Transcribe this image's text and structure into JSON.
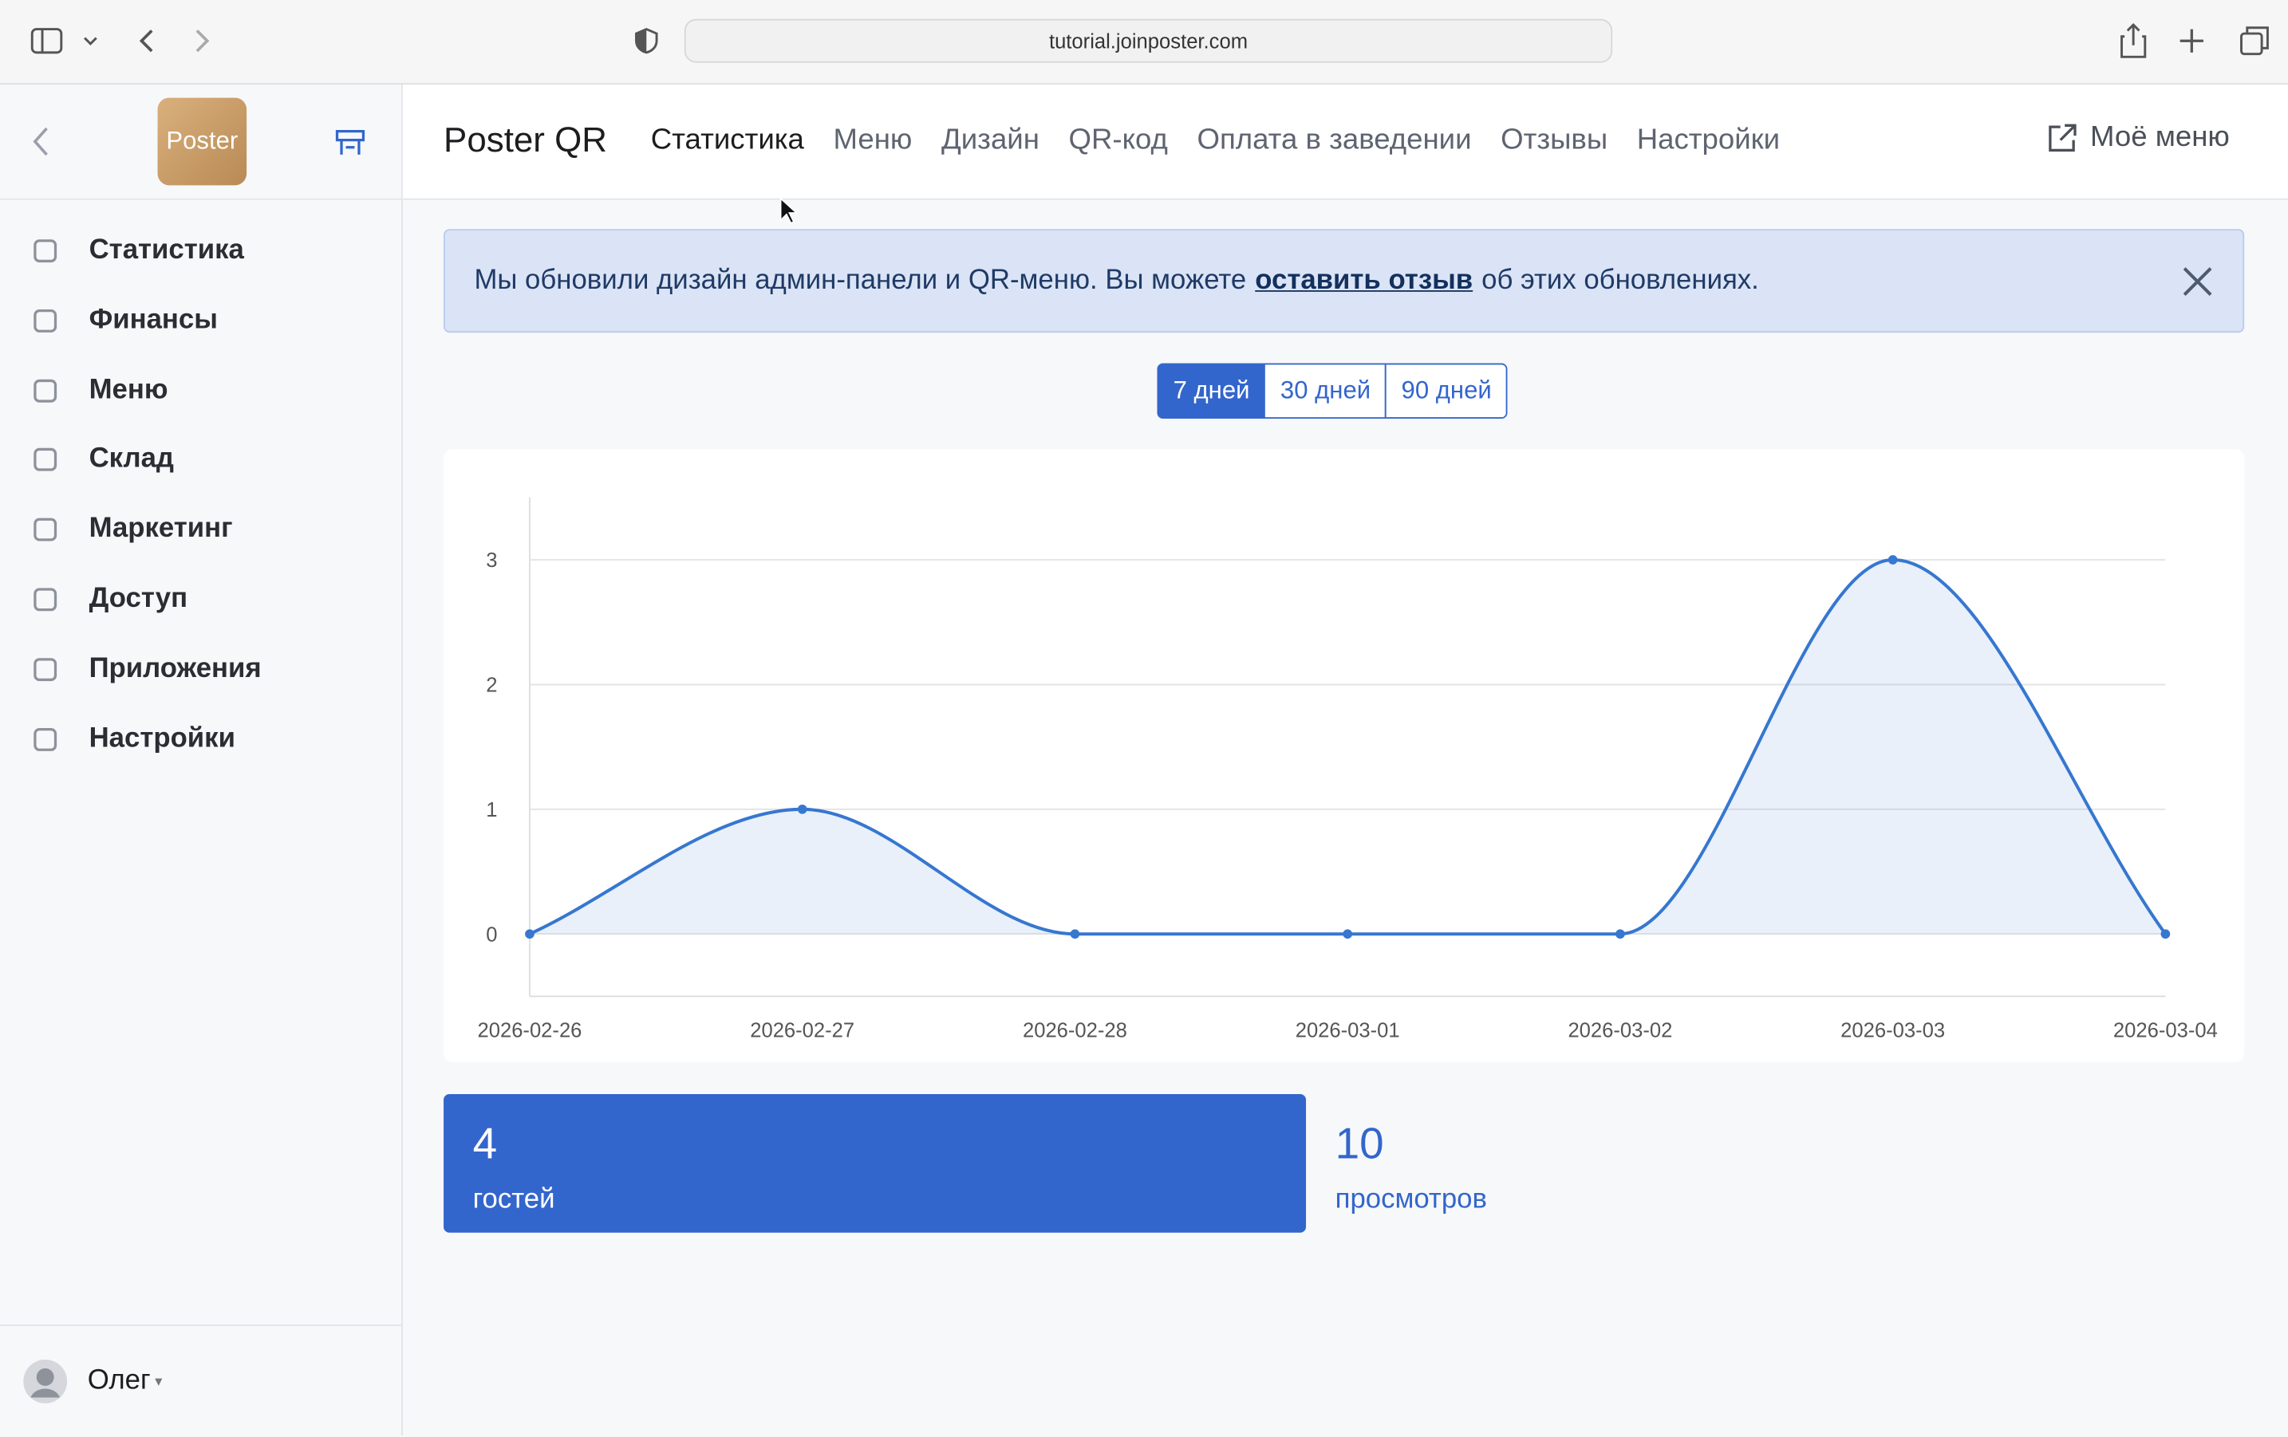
{
  "browser": {
    "url": "tutorial.joinposter.com"
  },
  "sidebar": {
    "logo": "Poster",
    "items": [
      "Статистика",
      "Финансы",
      "Меню",
      "Склад",
      "Маркетинг",
      "Доступ",
      "Приложения",
      "Настройки"
    ],
    "user": "Олег"
  },
  "header": {
    "brand": "Poster QR",
    "nav": [
      "Статистика",
      "Меню",
      "Дизайн",
      "QR-код",
      "Оплата в заведении",
      "Отзывы",
      "Настройки"
    ],
    "my_menu": "Моё меню"
  },
  "banner": {
    "text_before": "Мы обновили дизайн админ-панели и QR-меню. Вы можете",
    "link": "оставить отзыв",
    "text_after": "об этих обновлениях."
  },
  "range_buttons": [
    "7 дней",
    "30 дней",
    "90 дней"
  ],
  "chart_data": {
    "type": "line",
    "categories": [
      "2026-02-26",
      "2026-02-27",
      "2026-02-28",
      "2026-03-01",
      "2026-03-02",
      "2026-03-03",
      "2026-03-04"
    ],
    "series": [
      {
        "name": "гостей",
        "color": "#3677d0",
        "values": [
          0,
          1,
          0,
          0,
          0,
          3,
          0
        ]
      }
    ],
    "ylim": [
      -0.5,
      3.5
    ],
    "yticks": [
      0,
      1,
      2,
      3
    ],
    "grid": true,
    "smooth": true,
    "area": true
  },
  "stats": [
    {
      "value": "4",
      "label": "гостей"
    },
    {
      "value": "10",
      "label": "просмотров"
    }
  ]
}
